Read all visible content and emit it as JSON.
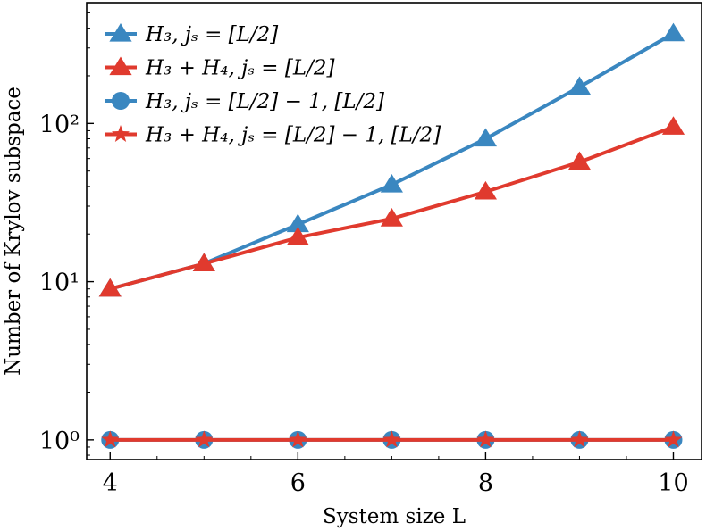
{
  "chart_data": {
    "type": "line",
    "xlabel": "System size L",
    "ylabel": "Number of Krylov subspace",
    "x": [
      4,
      5,
      6,
      7,
      8,
      9,
      10
    ],
    "xlim": [
      3.75,
      10.3
    ],
    "ylim": [
      0.75,
      580
    ],
    "yscale": "log",
    "x_ticks": [
      4,
      6,
      8,
      10
    ],
    "y_ticks": [
      1,
      10,
      100
    ],
    "y_tick_labels": [
      "10⁰",
      "10¹",
      "10²"
    ],
    "grid": false,
    "legend_position": "top-left",
    "series": [
      {
        "name": "H₃, jₛ = [L/2]",
        "color": "#3a87c0",
        "marker": "triangle",
        "values": [
          9,
          13,
          23,
          41,
          80,
          170,
          370
        ]
      },
      {
        "name": "H₃ + H₄, jₛ = [L/2]",
        "color": "#e03a2e",
        "marker": "triangle",
        "values": [
          9,
          13,
          19,
          25,
          37,
          57,
          95
        ]
      },
      {
        "name": "H₃, jₛ = [L/2] − 1, [L/2]",
        "color": "#3a87c0",
        "marker": "circle",
        "values": [
          1,
          1,
          1,
          1,
          1,
          1,
          1
        ]
      },
      {
        "name": "H₃ + H₄, jₛ = [L/2] − 1, [L/2]",
        "color": "#e03a2e",
        "marker": "star",
        "values": [
          1,
          1,
          1,
          1,
          1,
          1,
          1
        ]
      }
    ]
  }
}
